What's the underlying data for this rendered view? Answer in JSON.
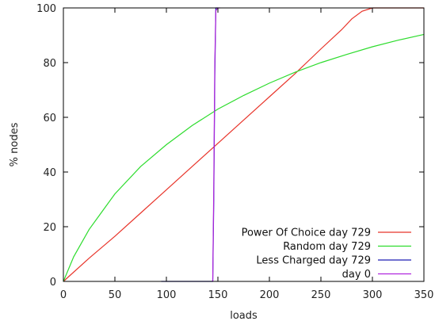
{
  "chart_data": {
    "type": "line",
    "title": "",
    "xlabel": "loads",
    "ylabel": "% nodes",
    "xlim": [
      0,
      350
    ],
    "ylim": [
      0,
      100
    ],
    "xticks": [
      0,
      50,
      100,
      150,
      200,
      250,
      300,
      350
    ],
    "xtick_labels": [
      "0",
      "50",
      "100",
      "150",
      "200",
      "250",
      "300",
      "350"
    ],
    "yticks": [
      0,
      20,
      40,
      60,
      80,
      100
    ],
    "ytick_labels": [
      "0",
      "20",
      "40",
      "60",
      "80",
      "100"
    ],
    "grid": false,
    "legend_position": "bottom-right",
    "series": [
      {
        "name": "Power Of Choice  day 729",
        "color": "#e8342a",
        "x": [
          0,
          25,
          50,
          75,
          100,
          125,
          150,
          175,
          200,
          225,
          250,
          270,
          280,
          290,
          300,
          305,
          310,
          350
        ],
        "y": [
          0,
          8.5,
          16.5,
          25,
          33.5,
          42,
          50.5,
          59,
          67.5,
          76,
          85,
          92,
          96,
          98.8,
          100,
          100,
          100,
          100
        ]
      },
      {
        "name": "Random  day 729",
        "color": "#2edc2e",
        "x": [
          0,
          10,
          25,
          50,
          75,
          100,
          125,
          150,
          175,
          200,
          225,
          250,
          275,
          300,
          325,
          350
        ],
        "y": [
          0,
          9,
          19,
          32,
          42,
          50,
          57,
          63,
          68,
          72.5,
          76.5,
          80,
          83,
          85.8,
          88.2,
          90.3
        ]
      },
      {
        "name": "Less Charged day 729",
        "color": "#1f1fb5",
        "x": [
          95,
          120,
          145,
          146,
          147,
          148,
          149,
          150
        ],
        "y": [
          0,
          0,
          0,
          30,
          75,
          100,
          100,
          100
        ]
      },
      {
        "name": "day 0",
        "color": "#b026dd",
        "x": [
          145,
          146,
          147,
          148,
          150,
          152
        ],
        "y": [
          0,
          35,
          80,
          99,
          100,
          100
        ]
      }
    ]
  }
}
